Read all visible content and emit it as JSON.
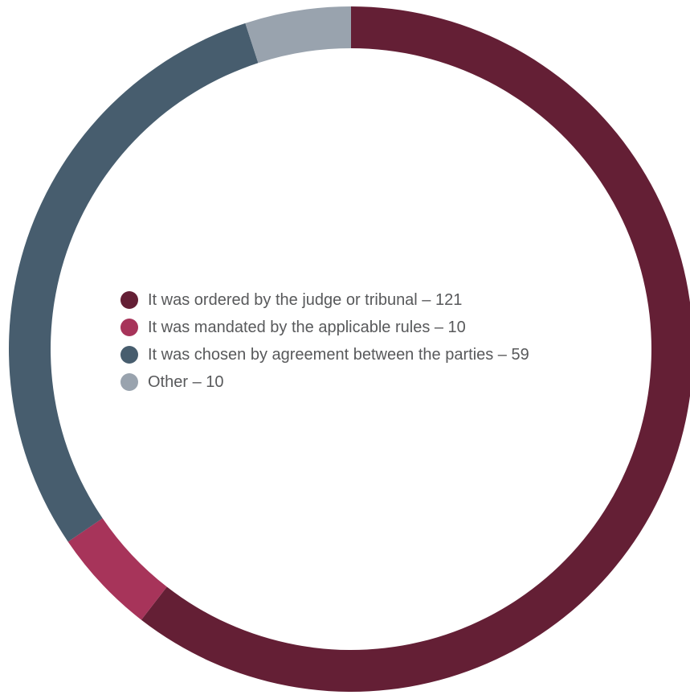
{
  "chart_data": {
    "type": "pie",
    "variant": "donut",
    "title": "",
    "legend_position": "center",
    "slices": [
      {
        "label": "It was ordered by the judge or tribunal – 121",
        "value": 121,
        "color": "#641f35"
      },
      {
        "label": "It was mandated by the applicable rules – 10",
        "value": 10,
        "color": "#a7345a"
      },
      {
        "label": "It was chosen by agreement between the parties – 59",
        "value": 59,
        "color": "#475d6e"
      },
      {
        "label": "Other – 10",
        "value": 10,
        "color": "#99a3ae"
      }
    ]
  }
}
